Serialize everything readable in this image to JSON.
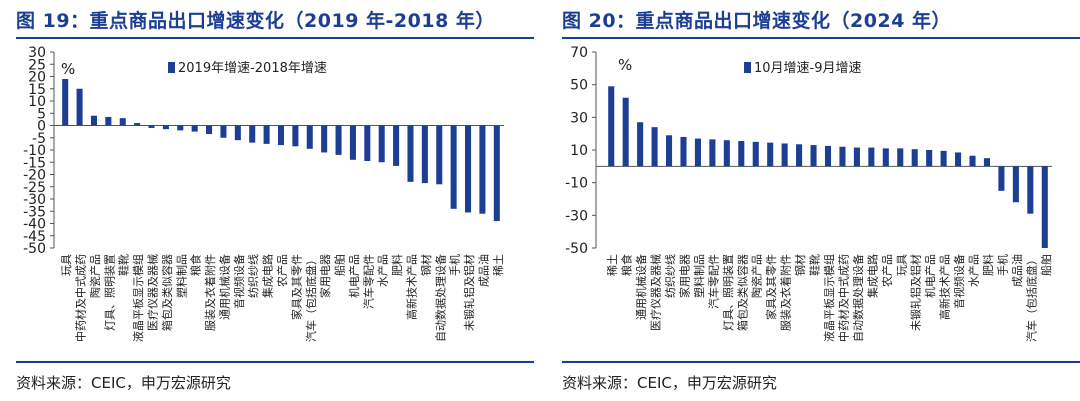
{
  "colors": {
    "bar": "#1c3f94",
    "title": "#1c3f94",
    "axis": "#555555",
    "text": "#222222"
  },
  "chart_data": [
    {
      "type": "bar",
      "title": "图 19：重点商品出口增速变化（2019 年-2018 年）",
      "source": "资料来源：CEIC，申万宏源研究",
      "unit_label": "%",
      "legend": "2019年增速-2018年增速",
      "legend_position": "top-center",
      "grid": false,
      "ylim": [
        -50,
        30
      ],
      "yticks": [
        30,
        25,
        20,
        15,
        10,
        5,
        0,
        -5,
        -10,
        -15,
        -20,
        -25,
        -30,
        -35,
        -40,
        -45,
        -50
      ],
      "categories": [
        "玩具",
        "中药材及中式成药",
        "陶瓷产品",
        "灯具、照明装置",
        "鞋靴",
        "液晶平板显示模组",
        "医疗仪器及器械",
        "箱包及类似容器",
        "塑料制品",
        "粮食",
        "服装及衣着附件",
        "通用机械设备",
        "音视频设备",
        "纺织纱线",
        "集成电路",
        "农产品",
        "家具及其零件",
        "汽车（包括底盘）",
        "家用电器",
        "船舶",
        "机电产品",
        "汽车零配件",
        "水产品",
        "肥料",
        "高新技术产品",
        "钢材",
        "自动数据处理设备",
        "手机",
        "未锻轧铝及铝材",
        "成品油",
        "稀土"
      ],
      "values": [
        19,
        15,
        4,
        3.5,
        3,
        1,
        -1,
        -1.5,
        -2,
        -2.5,
        -3.5,
        -5,
        -6,
        -7,
        -7.5,
        -8,
        -8.5,
        -9.5,
        -11,
        -12,
        -14,
        -14.5,
        -15,
        -16.5,
        -23,
        -23.5,
        -24,
        -34,
        -35.5,
        -36,
        -39
      ]
    },
    {
      "type": "bar",
      "title": "图 20：重点商品出口增速变化（2024 年）",
      "source": "资料来源：CEIC，申万宏源研究",
      "unit_label": "%",
      "legend": "10月增速-9月增速",
      "legend_position": "top-center",
      "grid": false,
      "ylim": [
        -50,
        70
      ],
      "yticks": [
        70,
        50,
        30,
        10,
        -10,
        -30,
        -50
      ],
      "categories": [
        "稀土",
        "粮食",
        "通用机械设备",
        "医疗仪器及器械",
        "纺织纱线",
        "家用电器",
        "塑料制品",
        "汽车零配件",
        "灯具、照明装置",
        "箱包及类似容器",
        "陶瓷产品",
        "家具及其零件",
        "服装及衣着附件",
        "钢材",
        "鞋靴",
        "液晶平板显示模组",
        "中药材及中式成药",
        "自动数据处理设备",
        "集成电路",
        "农产品",
        "玩具",
        "未锻轧铝及铝材",
        "机电产品",
        "高新技术产品",
        "音视频设备",
        "水产品",
        "肥料",
        "手机",
        "成品油",
        "汽车（包括底盘）",
        "船舶"
      ],
      "values": [
        49,
        42,
        27,
        24,
        19,
        18,
        17,
        16.5,
        16,
        15.5,
        15,
        14.5,
        14,
        13.5,
        13,
        12.5,
        12,
        11.5,
        11.5,
        11,
        11,
        10.5,
        10,
        9.5,
        8.5,
        6.5,
        5,
        -15,
        -22,
        -29,
        -50
      ]
    }
  ]
}
